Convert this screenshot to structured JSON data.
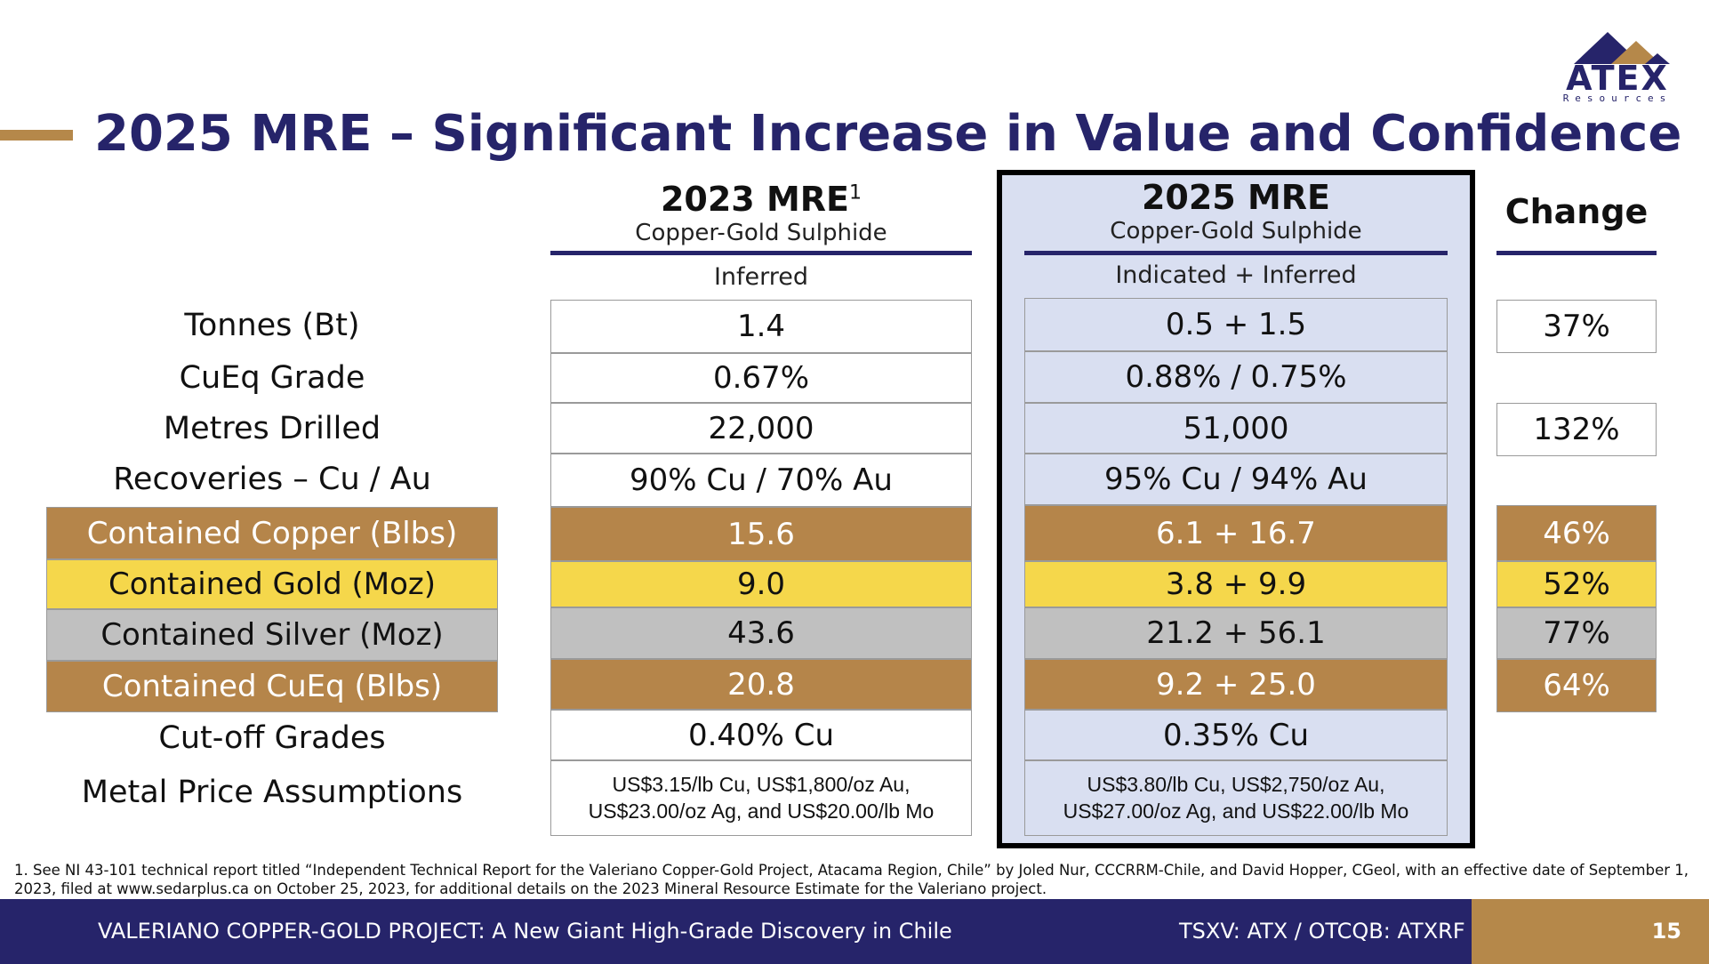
{
  "title": "2025 MRE – Significant Increase in Value and Confidence",
  "logo": {
    "name": "ATEX",
    "sub": "Resources"
  },
  "columns": {
    "mre2023": {
      "title": "2023 MRE",
      "sup": "1",
      "subtitle": "Copper-Gold Sulphide",
      "category": "Inferred"
    },
    "mre2025": {
      "title": "2025 MRE",
      "subtitle": "Copper-Gold Sulphide",
      "category": "Indicated + Inferred"
    },
    "change": {
      "title": "Change"
    }
  },
  "rows": [
    {
      "label": "Tonnes (Bt)",
      "v2023": "1.4",
      "v2025": "0.5 + 1.5",
      "change": "37%"
    },
    {
      "label": "CuEq Grade",
      "v2023": "0.67%",
      "v2025": "0.88% / 0.75%",
      "change": ""
    },
    {
      "label": "Metres Drilled",
      "v2023": "22,000",
      "v2025": "51,000",
      "change": "132%"
    },
    {
      "label": "Recoveries – Cu / Au",
      "v2023": "90% Cu / 70% Au",
      "v2025": "95% Cu / 94% Au",
      "change": ""
    },
    {
      "label": "Contained Copper (Blbs)",
      "v2023": "15.6",
      "v2025": "6.1 + 16.7",
      "change": "46%"
    },
    {
      "label": "Contained Gold (Moz)",
      "v2023": "9.0",
      "v2025": "3.8 + 9.9",
      "change": "52%"
    },
    {
      "label": "Contained Silver (Moz)",
      "v2023": "43.6",
      "v2025": "21.2 + 56.1",
      "change": "77%"
    },
    {
      "label": "Contained CuEq (Blbs)",
      "v2023": "20.8",
      "v2025": "9.2 + 25.0",
      "change": "64%"
    },
    {
      "label": "Cut-off Grades",
      "v2023": "0.40% Cu",
      "v2025": "0.35% Cu",
      "change": ""
    },
    {
      "label": "Metal Price Assumptions",
      "v2023": "US$3.15/lb Cu, US$1,800/oz Au, US$23.00/oz Ag, and US$20.00/lb Mo",
      "v2025": "US$3.80/lb Cu, US$2,750/oz Au, US$27.00/oz Ag, and US$22.00/lb Mo",
      "change": ""
    }
  ],
  "footnote": "1. See NI 43-101 technical report titled “Independent Technical Report for the Valeriano Copper-Gold Project, Atacama Region, Chile” by Joled Nur, CCCRRM-Chile, and David Hopper, CGeol, with an effective date of September 1, 2023, filed at www.sedarplus.ca on October 25, 2023, for additional details on the 2023 Mineral Resource Estimate for the Valeriano project.",
  "footer": {
    "project": "VALERIANO COPPER-GOLD PROJECT: A New Giant High-Grade Discovery in Chile",
    "ticker": "TSXV: ATX / OTCQB: ATXRF",
    "page": "15"
  },
  "colors": {
    "navy": "#26246a",
    "bronze": "#b5854a",
    "gold": "#f5d74b",
    "silver": "#c0c0c0",
    "lavender": "#d9dff1"
  }
}
